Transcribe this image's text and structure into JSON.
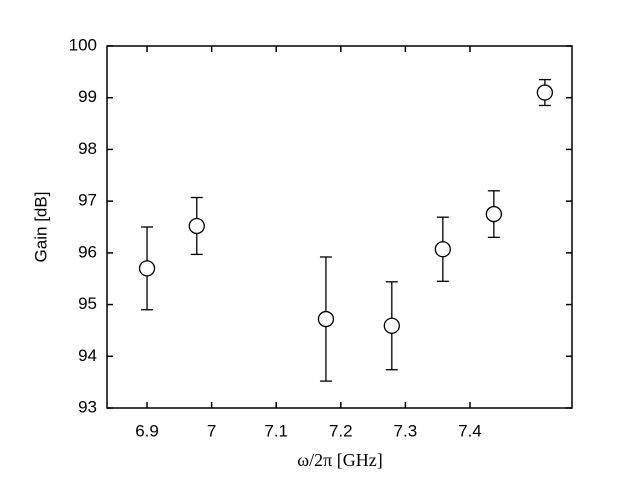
{
  "chart_data": {
    "type": "errorbar",
    "x_label": "ω/2π [GHz]",
    "y_label": "Gain [dB]",
    "x": [
      6.9,
      6.977,
      7.177,
      7.279,
      7.358,
      7.437,
      7.516
    ],
    "values": [
      95.7,
      96.52,
      94.72,
      94.59,
      96.07,
      96.75,
      99.1
    ],
    "errors": [
      0.8,
      0.55,
      1.2,
      0.85,
      0.62,
      0.45,
      0.25
    ],
    "color": "#000000",
    "xlim": [
      6.838,
      7.558
    ],
    "xticks": [
      6.9,
      7,
      7.1,
      7.2,
      7.3,
      7.4
    ],
    "ylim": [
      93,
      100
    ],
    "yticks": [
      93,
      94,
      95,
      96,
      97,
      98,
      99,
      100
    ]
  }
}
